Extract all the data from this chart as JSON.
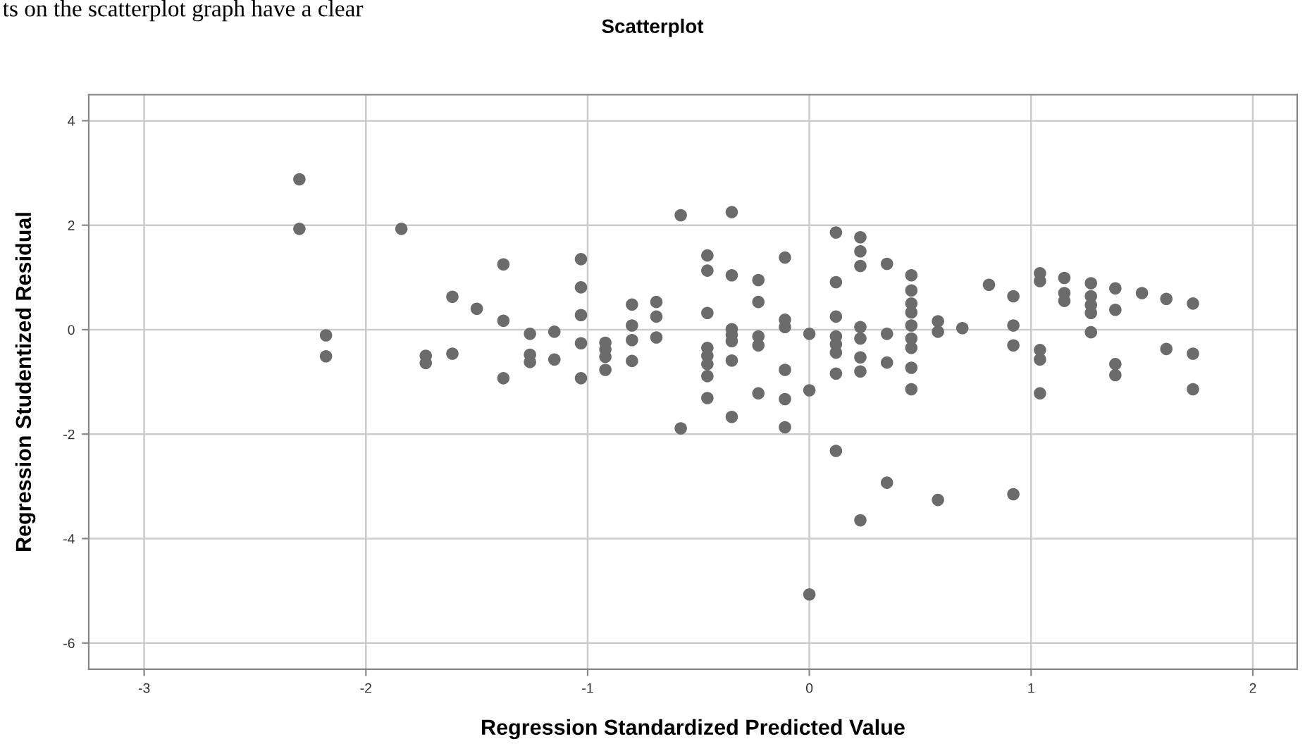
{
  "chart_data": {
    "type": "scatter",
    "title": "Scatterplot",
    "xlabel": "Regression Standardized Predicted Value",
    "ylabel": "Regression Studentized Residual",
    "annotations": [
      "ts on the scatterplot graph have a clear"
    ],
    "x": [
      -2.3,
      -2.3,
      -2.18,
      -2.18,
      -1.84,
      -1.73,
      -1.73,
      -1.61,
      -1.61,
      -1.5,
      -1.38,
      -1.38,
      -1.38,
      -1.26,
      -1.26,
      -1.26,
      -1.15,
      -1.15,
      -1.03,
      -1.03,
      -1.03,
      -1.03,
      -1.03,
      -0.92,
      -0.92,
      -0.92,
      -0.92,
      -0.8,
      -0.8,
      -0.8,
      -0.8,
      -0.69,
      -0.69,
      -0.69,
      -0.58,
      -0.58,
      -0.46,
      -0.46,
      -0.46,
      -0.46,
      -0.46,
      -0.46,
      -0.46,
      -0.46,
      -0.35,
      -0.35,
      -0.35,
      -0.35,
      -0.35,
      -0.35,
      -0.35,
      -0.23,
      -0.23,
      -0.23,
      -0.23,
      -0.23,
      -0.11,
      -0.11,
      -0.11,
      -0.11,
      -0.11,
      -0.11,
      0.0,
      0.0,
      0.0,
      0.12,
      0.12,
      0.12,
      0.12,
      0.12,
      0.12,
      0.12,
      0.12,
      0.23,
      0.23,
      0.23,
      0.23,
      0.23,
      0.23,
      0.23,
      0.23,
      0.35,
      0.35,
      0.35,
      0.35,
      0.46,
      0.46,
      0.46,
      0.46,
      0.46,
      0.46,
      0.46,
      0.46,
      0.46,
      0.58,
      0.58,
      0.58,
      0.69,
      0.81,
      0.92,
      0.92,
      0.92,
      0.92,
      1.04,
      1.04,
      1.04,
      1.04,
      1.04,
      1.15,
      1.15,
      1.15,
      1.27,
      1.27,
      1.27,
      1.27,
      1.27,
      1.38,
      1.38,
      1.38,
      1.38,
      1.5,
      1.61,
      1.61,
      1.73,
      1.73,
      1.73
    ],
    "values": [
      2.88,
      1.93,
      -0.11,
      -0.51,
      1.93,
      -0.5,
      -0.64,
      0.63,
      -0.46,
      0.4,
      1.25,
      0.17,
      -0.93,
      -0.08,
      -0.48,
      -0.62,
      -0.04,
      -0.57,
      1.35,
      0.81,
      0.28,
      -0.26,
      -0.93,
      -0.25,
      -0.38,
      -0.52,
      -0.77,
      0.48,
      0.08,
      -0.2,
      -0.6,
      0.53,
      0.25,
      -0.15,
      2.19,
      -1.89,
      1.42,
      1.13,
      0.32,
      -0.35,
      -0.5,
      -0.66,
      -0.89,
      -1.31,
      2.25,
      1.04,
      0.01,
      -0.1,
      -0.22,
      -0.59,
      -1.67,
      0.95,
      0.53,
      -0.13,
      -0.3,
      -1.22,
      1.38,
      0.19,
      0.05,
      -0.77,
      -1.33,
      -1.87,
      -0.08,
      -1.16,
      -5.07,
      1.86,
      0.91,
      0.25,
      -0.13,
      -0.28,
      -0.44,
      -0.84,
      -2.32,
      1.77,
      1.5,
      1.22,
      0.05,
      -0.17,
      -0.53,
      -0.8,
      -3.65,
      1.26,
      -0.08,
      -0.63,
      -2.93,
      1.04,
      0.75,
      0.5,
      0.33,
      0.08,
      -0.17,
      -0.35,
      -0.73,
      -1.14,
      0.16,
      -0.04,
      -3.26,
      0.03,
      0.86,
      0.64,
      0.08,
      -0.3,
      -3.15,
      1.08,
      0.93,
      -0.39,
      -0.57,
      -1.22,
      0.99,
      0.7,
      0.55,
      0.89,
      0.64,
      0.47,
      0.32,
      -0.05,
      0.79,
      0.38,
      -0.66,
      -0.87,
      0.7,
      0.59,
      -0.37,
      0.5,
      -0.46,
      -1.14
    ],
    "color": "#6b6b6b",
    "marker": "circle",
    "grid": true,
    "legend": false,
    "xlim": [
      -3.25,
      2.2
    ],
    "xticks": [
      -3,
      -2,
      -1,
      0,
      1,
      2
    ],
    "ylim": [
      -6.5,
      4.5
    ],
    "yticks": [
      -6,
      -4,
      -2,
      0,
      2,
      4
    ]
  }
}
